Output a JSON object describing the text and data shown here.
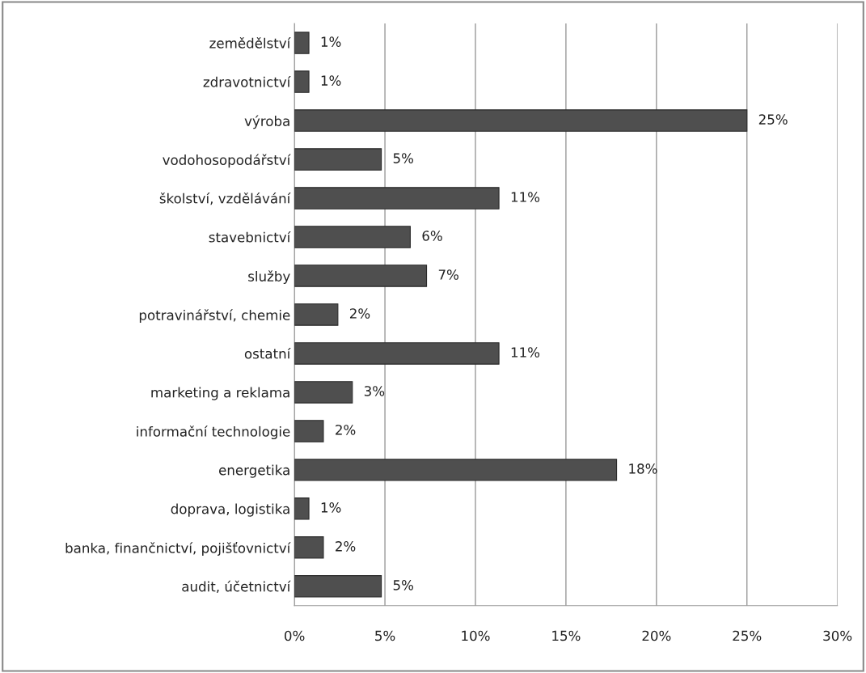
{
  "chart_data": {
    "type": "bar",
    "orientation": "horizontal",
    "categories": [
      "zemědělství",
      "zdravotnictví",
      "výroba",
      "vodohosopodářství",
      "školství, vzdělávání",
      "stavebnictví",
      "služby",
      "potravinářství, chemie",
      "ostatní",
      "marketing a reklama",
      "informační technologie",
      "energetika",
      "doprava, logistika",
      "banka, finančnictví, pojišťovnictví",
      "audit, účetnictví"
    ],
    "values": [
      0.8,
      0.8,
      25.0,
      4.8,
      11.3,
      6.4,
      7.3,
      2.4,
      11.3,
      3.2,
      1.6,
      17.8,
      0.8,
      1.6,
      4.8
    ],
    "value_labels": [
      "1%",
      "1%",
      "25%",
      "5%",
      "11%",
      "6%",
      "7%",
      "2%",
      "11%",
      "3%",
      "2%",
      "18%",
      "1%",
      "2%",
      "5%"
    ],
    "color": "#4f4f4f",
    "xlim": [
      0,
      30
    ],
    "xticks": [
      {
        "value": 0,
        "label": "0%"
      },
      {
        "value": 5,
        "label": "5%"
      },
      {
        "value": 10,
        "label": "10%"
      },
      {
        "value": 15,
        "label": "15%"
      },
      {
        "value": 20,
        "label": "20%"
      },
      {
        "value": 25,
        "label": "25%"
      },
      {
        "value": 30,
        "label": "30%"
      }
    ],
    "grid": "x",
    "legend": false
  }
}
